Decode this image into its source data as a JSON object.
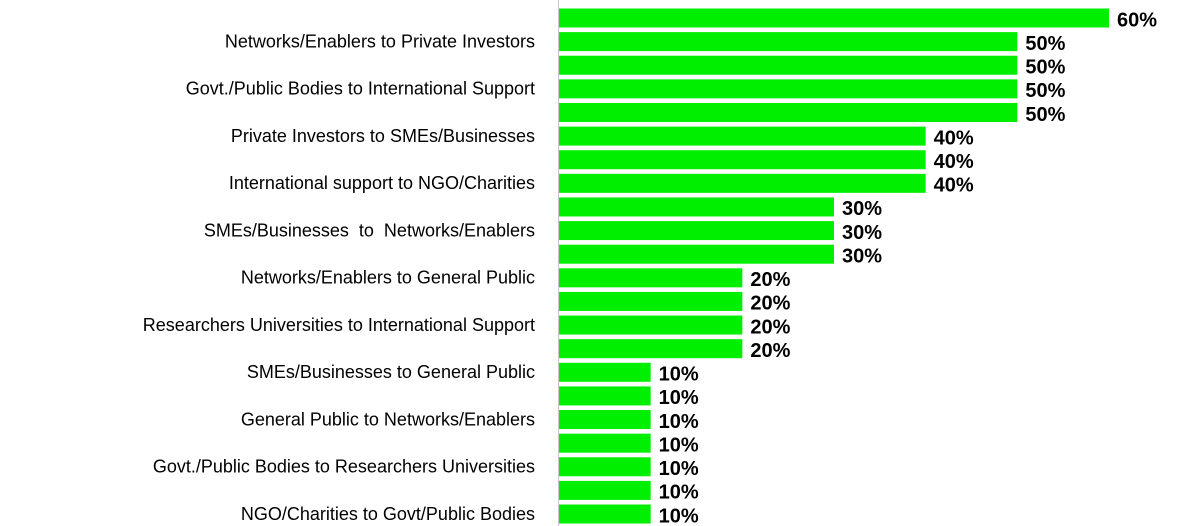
{
  "chart_data": {
    "type": "barh",
    "color": "#00ee00",
    "categories": [
      null,
      "Networks/Enablers to Private Investors",
      null,
      "Govt./Public Bodies to International Support",
      null,
      "Private Investors to SMEs/Businesses",
      null,
      "International support to NGO/Charities",
      null,
      "SMEs/Businesses  to  Networks/Enablers",
      null,
      "Networks/Enablers to General Public",
      null,
      "Researchers Universities to International Support",
      null,
      "SMEs/Businesses to General Public",
      null,
      "General Public to Networks/Enablers",
      null,
      "Govt./Public Bodies to Researchers Universities",
      null,
      "NGO/Charities to Govt/Public Bodies"
    ],
    "values": [
      60,
      50,
      50,
      50,
      50,
      40,
      40,
      40,
      30,
      30,
      30,
      20,
      20,
      20,
      20,
      10,
      10,
      10,
      10,
      10,
      10,
      10
    ],
    "value_labels": [
      "60%",
      "50%",
      "50%",
      "50%",
      "50%",
      "40%",
      "40%",
      "40%",
      "30%",
      "30%",
      "30%",
      "20%",
      "20%",
      "20%",
      "20%",
      "10%",
      "10%",
      "10%",
      "10%",
      "10%",
      "10%",
      "10%"
    ]
  }
}
